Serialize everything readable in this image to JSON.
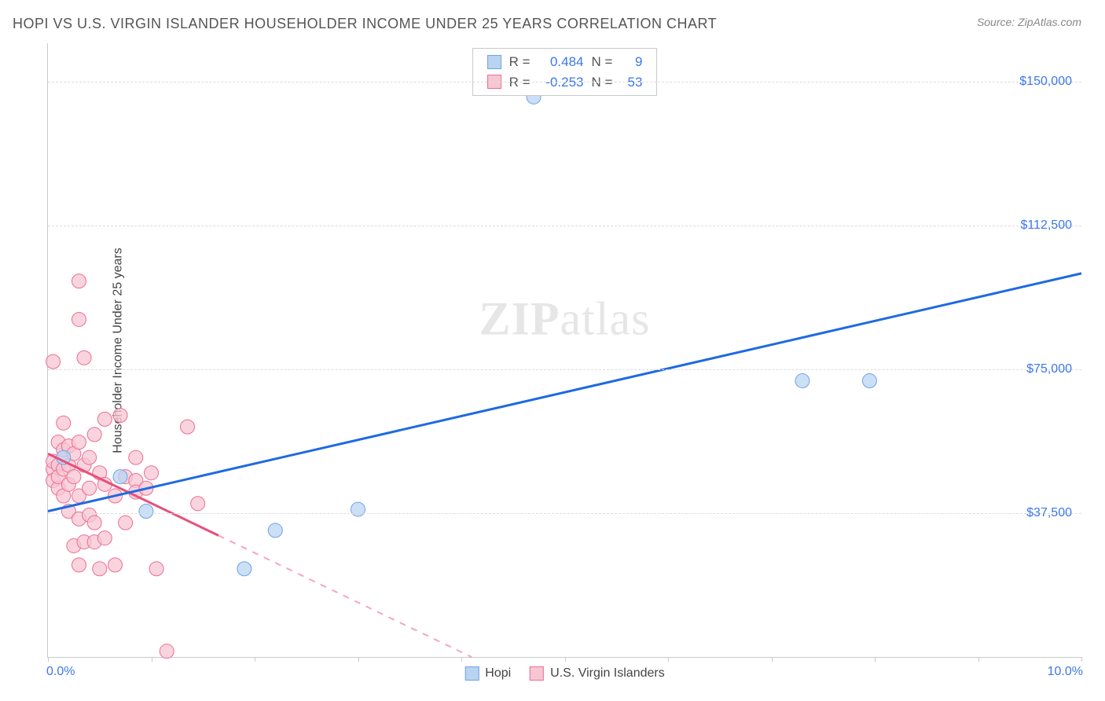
{
  "header": {
    "title": "HOPI VS U.S. VIRGIN ISLANDER HOUSEHOLDER INCOME UNDER 25 YEARS CORRELATION CHART",
    "source": "Source: ZipAtlas.com"
  },
  "chart": {
    "type": "scatter",
    "ylabel": "Householder Income Under 25 years",
    "watermark_bold": "ZIP",
    "watermark_light": "atlas",
    "background_color": "#ffffff",
    "grid_color": "#dcdcdc",
    "axis_color": "#c9c9c9",
    "tick_label_color": "#3b78e7",
    "xlim": [
      0,
      10
    ],
    "ylim": [
      0,
      160000
    ],
    "ytick_values": [
      37500,
      75000,
      112500,
      150000
    ],
    "ytick_labels": [
      "$37,500",
      "$75,000",
      "$112,500",
      "$150,000"
    ],
    "xtick_values": [
      0,
      1,
      2,
      3,
      4,
      5,
      6,
      7,
      8,
      9,
      10
    ],
    "xaxis_left_label": "0.0%",
    "xaxis_right_label": "10.0%",
    "series": {
      "hopi": {
        "label": "Hopi",
        "color_fill": "#b9d4f1",
        "color_stroke": "#6da3e8",
        "marker_radius": 9,
        "line_color": "#1e6ae0",
        "line_width": 3,
        "R_label": "R =",
        "R_value": "0.484",
        "N_label": "N =",
        "N_value": "9",
        "trend": {
          "x1": 0.0,
          "y1": 38000,
          "x2": 10.0,
          "y2": 100000,
          "extrapolate_from_x": 0.0
        },
        "points": [
          {
            "x": 0.15,
            "y": 52000
          },
          {
            "x": 0.7,
            "y": 47000
          },
          {
            "x": 0.95,
            "y": 38000
          },
          {
            "x": 1.9,
            "y": 23000
          },
          {
            "x": 2.2,
            "y": 33000
          },
          {
            "x": 3.0,
            "y": 38500
          },
          {
            "x": 4.7,
            "y": 146000
          },
          {
            "x": 7.3,
            "y": 72000
          },
          {
            "x": 7.95,
            "y": 72000
          }
        ]
      },
      "usvi": {
        "label": "U.S. Virgin Islanders",
        "color_fill": "#f7c6d3",
        "color_stroke": "#ec6e91",
        "marker_radius": 9,
        "line_color": "#e94f7a",
        "line_width": 3,
        "R_label": "R =",
        "R_value": "-0.253",
        "N_label": "N =",
        "N_value": "53",
        "trend": {
          "x1": 0.0,
          "y1": 53000,
          "x2": 4.1,
          "y2": 0,
          "extrapolate_from_x": 1.65
        },
        "points": [
          {
            "x": 0.05,
            "y": 77000
          },
          {
            "x": 0.05,
            "y": 49000
          },
          {
            "x": 0.05,
            "y": 46000
          },
          {
            "x": 0.05,
            "y": 51000
          },
          {
            "x": 0.1,
            "y": 44000
          },
          {
            "x": 0.1,
            "y": 50000
          },
          {
            "x": 0.1,
            "y": 56000
          },
          {
            "x": 0.1,
            "y": 47000
          },
          {
            "x": 0.15,
            "y": 61000
          },
          {
            "x": 0.15,
            "y": 54000
          },
          {
            "x": 0.15,
            "y": 42000
          },
          {
            "x": 0.15,
            "y": 49000
          },
          {
            "x": 0.2,
            "y": 55000
          },
          {
            "x": 0.2,
            "y": 45000
          },
          {
            "x": 0.2,
            "y": 38000
          },
          {
            "x": 0.2,
            "y": 50000
          },
          {
            "x": 0.25,
            "y": 29000
          },
          {
            "x": 0.25,
            "y": 53000
          },
          {
            "x": 0.25,
            "y": 47000
          },
          {
            "x": 0.3,
            "y": 98000
          },
          {
            "x": 0.3,
            "y": 88000
          },
          {
            "x": 0.3,
            "y": 56000
          },
          {
            "x": 0.3,
            "y": 42000
          },
          {
            "x": 0.3,
            "y": 36000
          },
          {
            "x": 0.3,
            "y": 24000
          },
          {
            "x": 0.35,
            "y": 78000
          },
          {
            "x": 0.35,
            "y": 50000
          },
          {
            "x": 0.35,
            "y": 30000
          },
          {
            "x": 0.4,
            "y": 52000
          },
          {
            "x": 0.4,
            "y": 44000
          },
          {
            "x": 0.4,
            "y": 37000
          },
          {
            "x": 0.45,
            "y": 58000
          },
          {
            "x": 0.45,
            "y": 35000
          },
          {
            "x": 0.45,
            "y": 30000
          },
          {
            "x": 0.5,
            "y": 48000
          },
          {
            "x": 0.5,
            "y": 23000
          },
          {
            "x": 0.55,
            "y": 62000
          },
          {
            "x": 0.55,
            "y": 45000
          },
          {
            "x": 0.55,
            "y": 31000
          },
          {
            "x": 0.65,
            "y": 24000
          },
          {
            "x": 0.65,
            "y": 42000
          },
          {
            "x": 0.7,
            "y": 63000
          },
          {
            "x": 0.75,
            "y": 47000
          },
          {
            "x": 0.75,
            "y": 35000
          },
          {
            "x": 0.85,
            "y": 46000
          },
          {
            "x": 0.85,
            "y": 52000
          },
          {
            "x": 0.85,
            "y": 43000
          },
          {
            "x": 0.95,
            "y": 44000
          },
          {
            "x": 1.0,
            "y": 48000
          },
          {
            "x": 1.05,
            "y": 23000
          },
          {
            "x": 1.15,
            "y": 1500
          },
          {
            "x": 1.35,
            "y": 60000
          },
          {
            "x": 1.45,
            "y": 40000
          }
        ]
      }
    }
  }
}
